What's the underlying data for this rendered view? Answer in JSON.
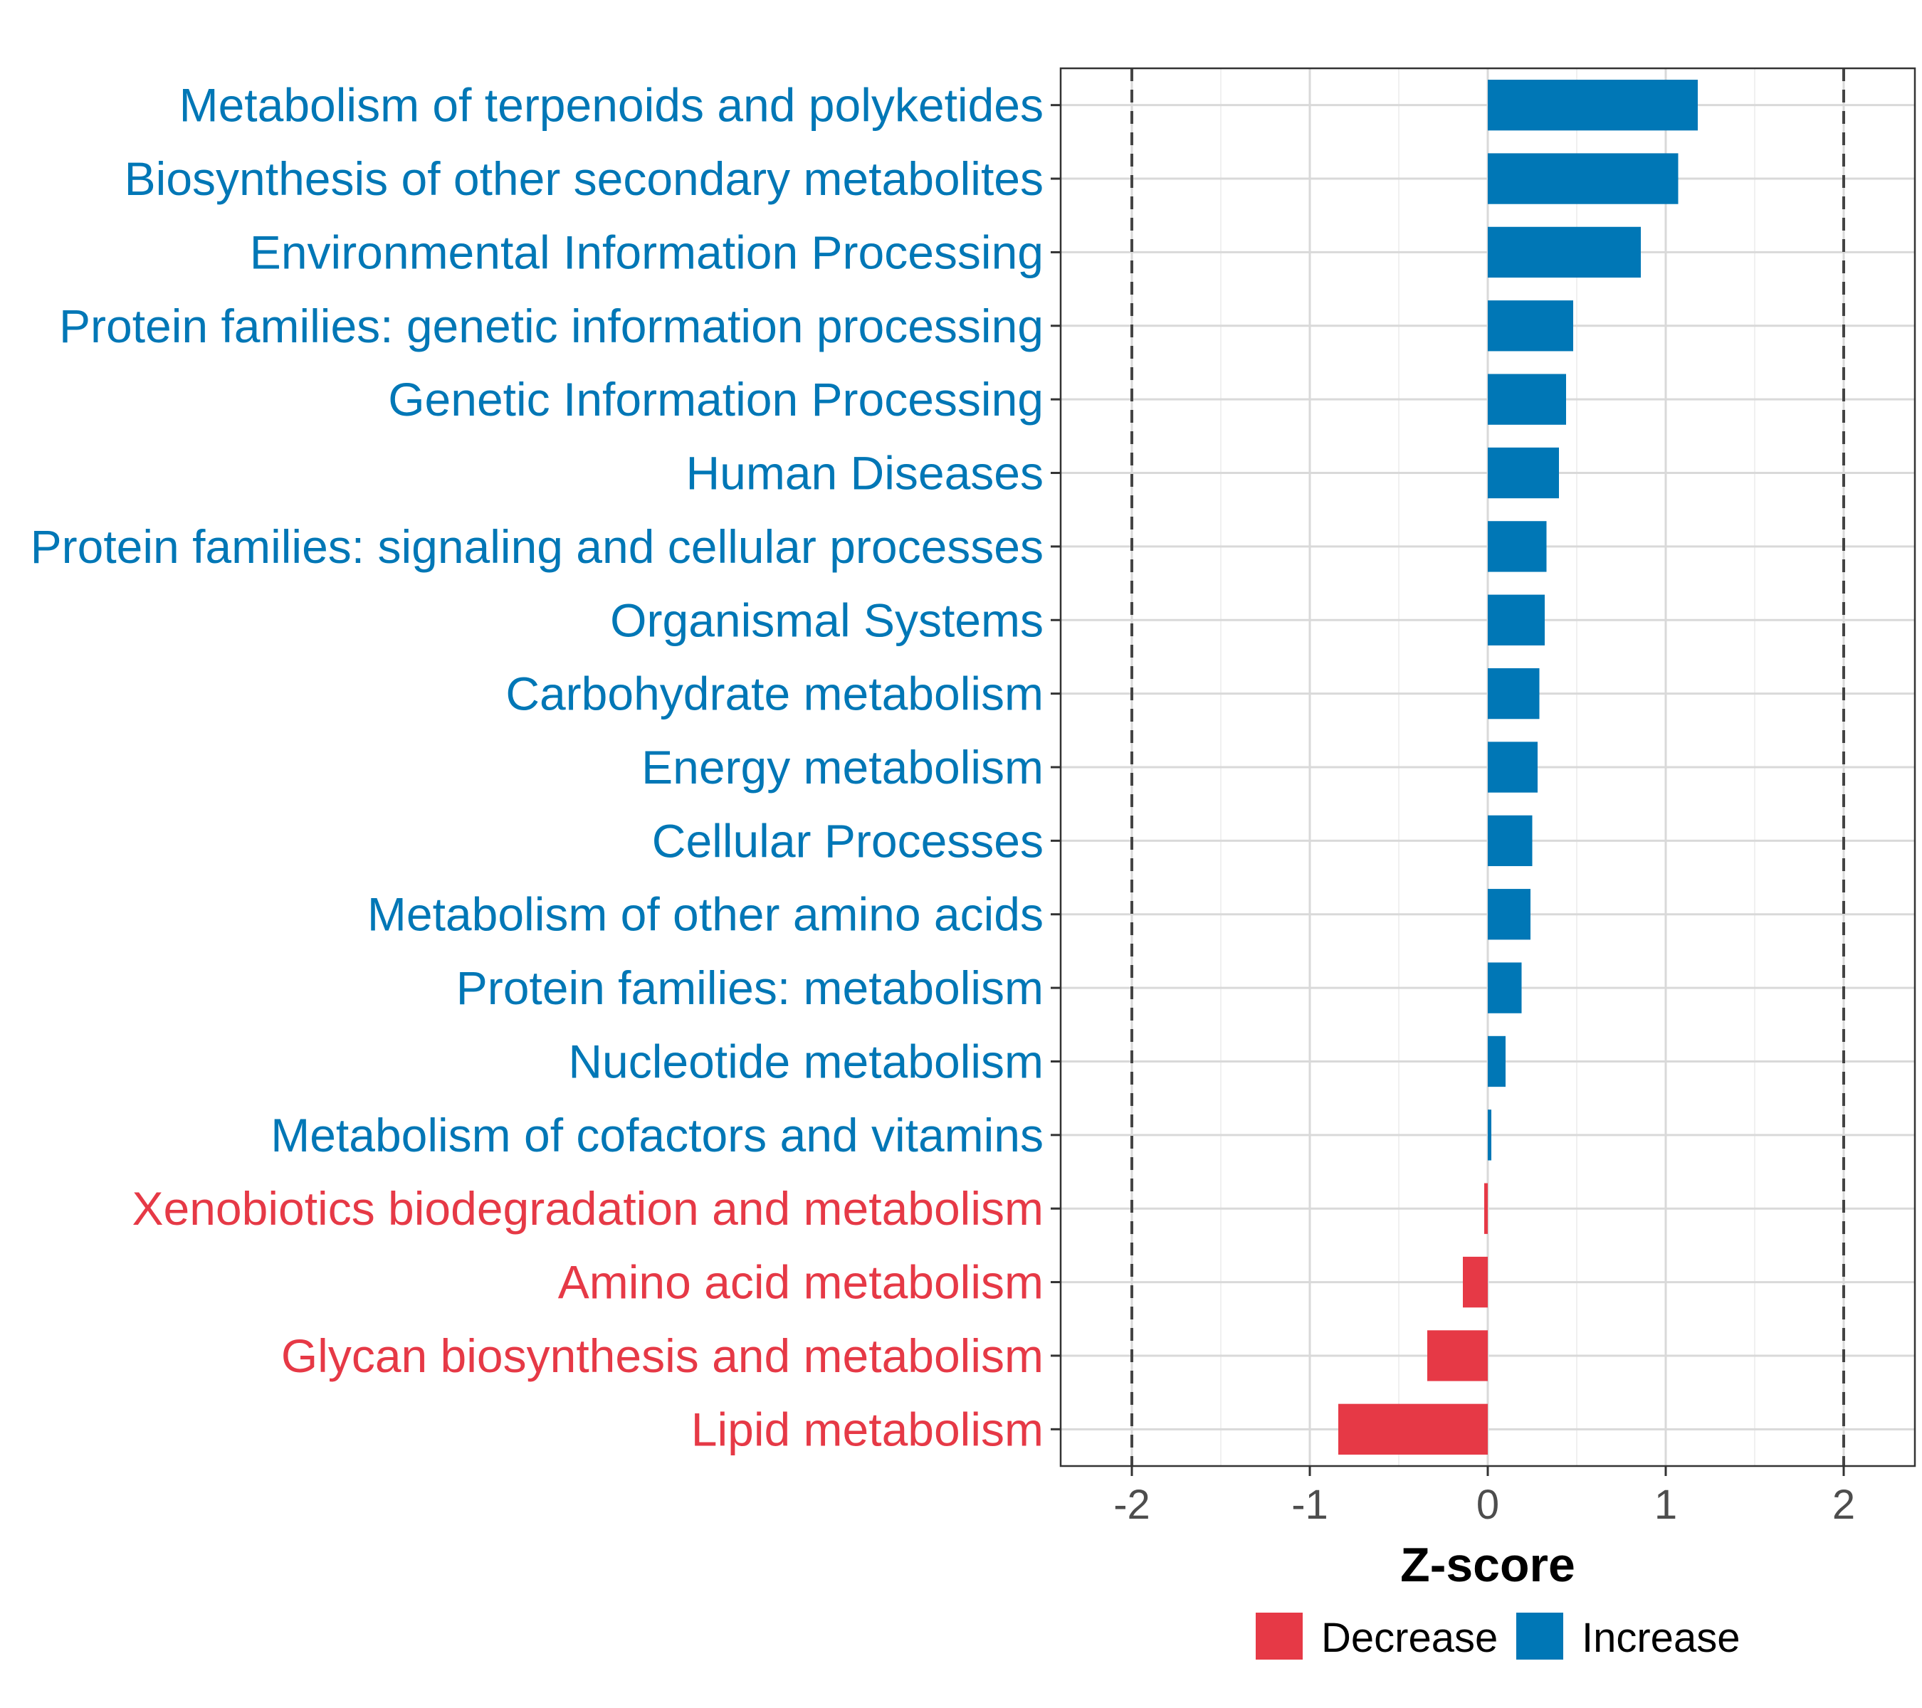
{
  "chart_data": {
    "type": "bar",
    "orientation": "horizontal",
    "title": "",
    "xlabel": "Z-score",
    "ylabel": "",
    "xlim": [
      -2.4,
      2.4
    ],
    "xticks": [
      -2,
      -1,
      0,
      1,
      2
    ],
    "xtick_labels": [
      "-2",
      "-1",
      "0",
      "1",
      "2"
    ],
    "reference_lines": [
      -2,
      2
    ],
    "grid": true,
    "categories": [
      "Metabolism of terpenoids and polyketides",
      "Biosynthesis of other secondary metabolites",
      "Environmental Information Processing",
      "Protein families: genetic information processing",
      "Genetic Information Processing",
      "Human Diseases",
      "Protein families: signaling and cellular processes",
      "Organismal Systems",
      "Carbohydrate metabolism",
      "Energy metabolism",
      "Cellular Processes",
      "Metabolism of other amino acids",
      "Protein families: metabolism",
      "Nucleotide metabolism",
      "Metabolism of cofactors and vitamins",
      "Xenobiotics biodegradation and metabolism",
      "Amino acid metabolism",
      "Glycan biosynthesis and metabolism",
      "Lipid metabolism"
    ],
    "values": [
      1.18,
      1.07,
      0.86,
      0.48,
      0.44,
      0.4,
      0.33,
      0.32,
      0.29,
      0.28,
      0.25,
      0.24,
      0.19,
      0.1,
      0.02,
      -0.02,
      -0.14,
      -0.34,
      -0.84
    ],
    "groups": [
      "Increase",
      "Increase",
      "Increase",
      "Increase",
      "Increase",
      "Increase",
      "Increase",
      "Increase",
      "Increase",
      "Increase",
      "Increase",
      "Increase",
      "Increase",
      "Increase",
      "Increase",
      "Decrease",
      "Decrease",
      "Decrease",
      "Decrease"
    ],
    "legend": {
      "position": "bottom",
      "entries": [
        {
          "name": "Decrease",
          "color": "#e63946"
        },
        {
          "name": "Increase",
          "color": "#0077b6"
        }
      ]
    }
  }
}
